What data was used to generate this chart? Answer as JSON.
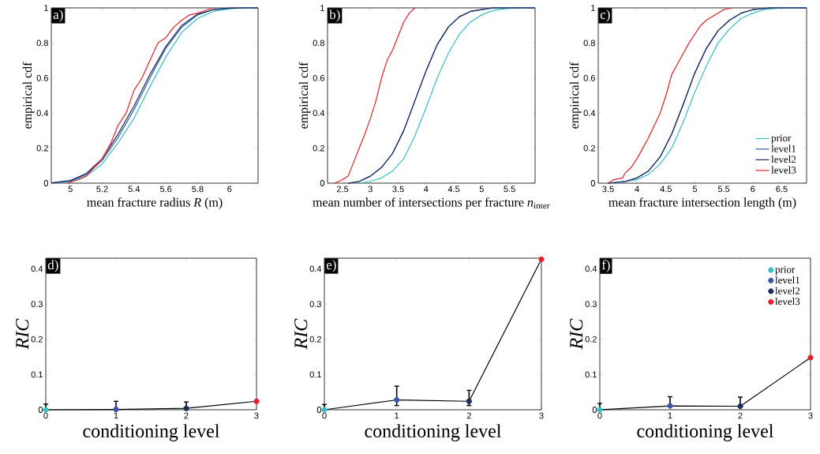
{
  "chart_data": [
    {
      "type": "line",
      "xlabel": "mean fracture radius *R* (m)",
      "ylabel": "empirical cdf",
      "annotations": [
        "a)"
      ],
      "xlim": [
        4.88,
        6.18
      ],
      "ylim": [
        0,
        1
      ],
      "xticks": [
        5,
        5.2,
        5.4,
        5.6,
        5.8,
        6
      ],
      "yticks": [
        0,
        0.2,
        0.4,
        0.6,
        0.8,
        1
      ],
      "legend": false,
      "series": [
        {
          "color": "#3bbfc4",
          "x": [
            4.88,
            5.0,
            5.1,
            5.2,
            5.3,
            5.4,
            5.5,
            5.6,
            5.7,
            5.8,
            5.9,
            6.0,
            6.1,
            6.18
          ],
          "values": [
            0,
            0.01,
            0.04,
            0.11,
            0.23,
            0.37,
            0.55,
            0.72,
            0.86,
            0.94,
            0.98,
            0.995,
            1,
            1
          ]
        },
        {
          "color": "#2b5ea8",
          "x": [
            4.88,
            5.0,
            5.1,
            5.2,
            5.3,
            5.4,
            5.5,
            5.6,
            5.7,
            5.8,
            5.9,
            6.0,
            6.1,
            6.18
          ],
          "values": [
            0.001,
            0.012,
            0.05,
            0.13,
            0.26,
            0.42,
            0.6,
            0.77,
            0.89,
            0.96,
            0.99,
            0.998,
            1,
            1
          ]
        },
        {
          "color": "#1c2a5e",
          "x": [
            4.88,
            5.0,
            5.1,
            5.2,
            5.3,
            5.4,
            5.5,
            5.6,
            5.7,
            5.8,
            5.9,
            6.0,
            6.1,
            6.18
          ],
          "values": [
            0.002,
            0.015,
            0.055,
            0.14,
            0.28,
            0.44,
            0.62,
            0.78,
            0.9,
            0.965,
            0.99,
            0.998,
            1,
            1
          ]
        },
        {
          "color": "#e8202a",
          "x": [
            4.98,
            5.05,
            5.1,
            5.15,
            5.2,
            5.25,
            5.3,
            5.35,
            5.4,
            5.45,
            5.5,
            5.55,
            5.6,
            5.65,
            5.7,
            5.75,
            5.8,
            5.9
          ],
          "values": [
            0,
            0.02,
            0.04,
            0.09,
            0.14,
            0.22,
            0.33,
            0.4,
            0.53,
            0.6,
            0.7,
            0.8,
            0.83,
            0.89,
            0.93,
            0.96,
            0.97,
            1
          ]
        }
      ]
    },
    {
      "type": "line",
      "xlabel": "mean number of intersections per fracture *n*$_{inter}$",
      "ylabel": "empirical cdf",
      "annotations": [
        "b)"
      ],
      "xlim": [
        2.23,
        5.96
      ],
      "ylim": [
        0,
        1
      ],
      "xticks": [
        2.5,
        3,
        3.5,
        4,
        4.5,
        5,
        5.5
      ],
      "yticks": [
        0,
        0.2,
        0.4,
        0.6,
        0.8,
        1
      ],
      "legend": false,
      "series": [
        {
          "color": "#3bbfc4",
          "x": [
            2.8,
            3.0,
            3.2,
            3.4,
            3.6,
            3.8,
            4.0,
            4.2,
            4.4,
            4.6,
            4.8,
            5.0,
            5.2,
            5.5,
            5.96
          ],
          "values": [
            0,
            0.01,
            0.03,
            0.07,
            0.14,
            0.27,
            0.43,
            0.6,
            0.74,
            0.85,
            0.92,
            0.96,
            0.985,
            0.998,
            1
          ]
        },
        {
          "color": "#2b5ea8",
          "x": [
            2.6,
            2.8,
            3.0,
            3.2,
            3.4,
            3.6,
            3.8,
            4.0,
            4.2,
            4.4,
            4.6,
            4.8,
            5.0,
            5.2,
            5.96
          ],
          "values": [
            0,
            0.01,
            0.04,
            0.09,
            0.17,
            0.3,
            0.47,
            0.64,
            0.79,
            0.89,
            0.95,
            0.98,
            0.99,
            1,
            1
          ]
        },
        {
          "color": "#1c2a5e",
          "x": [
            2.6,
            2.8,
            3.0,
            3.2,
            3.4,
            3.6,
            3.8,
            4.0,
            4.2,
            4.4,
            4.6,
            4.8,
            5.0,
            5.2,
            5.96
          ],
          "values": [
            0,
            0.01,
            0.04,
            0.09,
            0.17,
            0.3,
            0.47,
            0.64,
            0.79,
            0.89,
            0.95,
            0.98,
            0.99,
            1,
            1
          ]
        },
        {
          "color": "#e8202a",
          "x": [
            2.35,
            2.5,
            2.6,
            2.7,
            2.8,
            2.9,
            3.0,
            3.1,
            3.2,
            3.3,
            3.4,
            3.5,
            3.6,
            3.7,
            3.8
          ],
          "values": [
            0,
            0.02,
            0.04,
            0.12,
            0.2,
            0.28,
            0.37,
            0.47,
            0.6,
            0.7,
            0.76,
            0.84,
            0.92,
            0.97,
            1
          ]
        }
      ]
    },
    {
      "type": "line",
      "xlabel": "mean fracture intersection length (m)",
      "ylabel": "empirical cdf",
      "annotations": [
        "c)"
      ],
      "xlim": [
        3.33,
        6.93
      ],
      "ylim": [
        0,
        1
      ],
      "xticks": [
        3.5,
        4,
        4.5,
        5,
        5.5,
        6,
        6.5
      ],
      "yticks": [
        0,
        0.2,
        0.4,
        0.6,
        0.8,
        1
      ],
      "legend": "bottom right",
      "series": [
        {
          "name": "prior",
          "color": "#3bbfc4",
          "x": [
            3.6,
            4.0,
            4.2,
            4.4,
            4.6,
            4.8,
            5.0,
            5.2,
            5.4,
            5.6,
            5.8,
            6.0,
            6.2,
            6.5,
            6.93
          ],
          "values": [
            0,
            0.02,
            0.05,
            0.11,
            0.2,
            0.35,
            0.52,
            0.67,
            0.8,
            0.88,
            0.94,
            0.97,
            0.99,
            1,
            1
          ]
        },
        {
          "name": "level1",
          "color": "#2b5ea8",
          "x": [
            3.5,
            3.8,
            4.0,
            4.2,
            4.4,
            4.6,
            4.8,
            5.0,
            5.2,
            5.4,
            5.6,
            5.8,
            6.0,
            6.3,
            6.93
          ],
          "values": [
            0,
            0.01,
            0.03,
            0.07,
            0.15,
            0.28,
            0.45,
            0.63,
            0.77,
            0.87,
            0.93,
            0.97,
            0.99,
            1,
            1
          ]
        },
        {
          "name": "level2",
          "color": "#1c2a5e",
          "x": [
            3.5,
            3.8,
            4.0,
            4.2,
            4.4,
            4.6,
            4.8,
            5.0,
            5.2,
            5.4,
            5.6,
            5.8,
            6.0,
            6.3,
            6.93
          ],
          "values": [
            0,
            0.01,
            0.03,
            0.07,
            0.15,
            0.28,
            0.45,
            0.63,
            0.77,
            0.87,
            0.93,
            0.97,
            0.99,
            1,
            1
          ]
        },
        {
          "name": "level3",
          "color": "#e8202a",
          "x": [
            3.5,
            3.6,
            3.75,
            3.8,
            3.9,
            4.0,
            4.1,
            4.2,
            4.3,
            4.4,
            4.5,
            4.6,
            4.7,
            4.8,
            4.9,
            5.0,
            5.1,
            5.2,
            5.3,
            5.5,
            5.65
          ],
          "values": [
            0,
            0.02,
            0.03,
            0.06,
            0.09,
            0.14,
            0.2,
            0.26,
            0.33,
            0.4,
            0.5,
            0.62,
            0.68,
            0.74,
            0.8,
            0.85,
            0.9,
            0.93,
            0.95,
            0.99,
            1
          ]
        }
      ]
    },
    {
      "type": "line",
      "xlabel": "conditioning level",
      "ylabel": "*RIC*",
      "annotations": [
        "d)"
      ],
      "xlim": [
        0,
        3
      ],
      "ylim": [
        0,
        0.43
      ],
      "xticks": [
        0,
        1,
        2,
        3
      ],
      "yticks": [
        0,
        0.1,
        0.2,
        0.3,
        0.4
      ],
      "legend": false,
      "series": [
        {
          "color": "#000000",
          "marker": "none",
          "x": [
            0,
            1,
            2,
            3
          ],
          "values": [
            0,
            0.001,
            0.004,
            0.024
          ]
        },
        {
          "type": "scatter",
          "marker": "circle",
          "color": "#3bbfc4",
          "x": [
            0
          ],
          "values": [
            0
          ],
          "errors": [
            [
              0,
              0.016
            ]
          ]
        },
        {
          "type": "scatter",
          "marker": "circle",
          "color": "#3a57a6",
          "x": [
            1
          ],
          "values": [
            0.001
          ],
          "errors": [
            [
              0,
              0.024
            ]
          ]
        },
        {
          "type": "scatter",
          "marker": "circle",
          "color": "#1c2d5a",
          "x": [
            2
          ],
          "values": [
            0.004
          ],
          "errors": [
            [
              0.004,
              0.022
            ]
          ]
        },
        {
          "type": "scatter",
          "marker": "circle",
          "color": "#e8202a",
          "x": [
            3
          ],
          "values": [
            0.024
          ]
        }
      ]
    },
    {
      "type": "line",
      "xlabel": "conditioning level",
      "ylabel": "*RIC*",
      "annotations": [
        "e)"
      ],
      "xlim": [
        0,
        3
      ],
      "ylim": [
        0,
        0.43
      ],
      "xticks": [
        0,
        1,
        2,
        3
      ],
      "yticks": [
        0,
        0.1,
        0.2,
        0.3,
        0.4
      ],
      "legend": false,
      "series": [
        {
          "color": "#000000",
          "marker": "none",
          "x": [
            0,
            1,
            2,
            3
          ],
          "values": [
            0,
            0.028,
            0.024,
            0.427
          ]
        },
        {
          "type": "scatter",
          "marker": "circle",
          "color": "#3bbfc4",
          "x": [
            0
          ],
          "values": [
            0
          ],
          "errors": [
            [
              0,
              0.015
            ]
          ]
        },
        {
          "type": "scatter",
          "marker": "circle",
          "color": "#3a57a6",
          "x": [
            1
          ],
          "values": [
            0.028
          ],
          "errors": [
            [
              0.012,
              0.067
            ]
          ]
        },
        {
          "type": "scatter",
          "marker": "circle",
          "color": "#1c2d5a",
          "x": [
            2
          ],
          "values": [
            0.024
          ],
          "errors": [
            [
              0.012,
              0.055
            ]
          ]
        },
        {
          "type": "scatter",
          "marker": "circle",
          "color": "#e8202a",
          "x": [
            3
          ],
          "values": [
            0.427
          ]
        }
      ]
    },
    {
      "type": "line",
      "xlabel": "conditioning level",
      "ylabel": "*RIC*",
      "annotations": [
        "f)"
      ],
      "xlim": [
        0,
        3
      ],
      "ylim": [
        0,
        0.43
      ],
      "xticks": [
        0,
        1,
        2,
        3
      ],
      "yticks": [
        0,
        0.1,
        0.2,
        0.3,
        0.4
      ],
      "legend": "top right",
      "series": [
        {
          "color": "#000000",
          "marker": "none",
          "x": [
            0,
            1,
            2,
            3
          ],
          "values": [
            0,
            0.011,
            0.01,
            0.148
          ]
        },
        {
          "type": "scatter",
          "marker": "circle",
          "name": "prior",
          "color": "#3bbfc4",
          "x": [
            0
          ],
          "values": [
            0
          ],
          "errors": [
            [
              0,
              0.018
            ]
          ]
        },
        {
          "type": "scatter",
          "marker": "circle",
          "name": "level1",
          "color": "#3a57a6",
          "x": [
            1
          ],
          "values": [
            0.011
          ],
          "errors": [
            [
              0.011,
              0.037
            ]
          ]
        },
        {
          "type": "scatter",
          "marker": "circle",
          "name": "level2",
          "color": "#1c2d5a",
          "x": [
            2
          ],
          "values": [
            0.01
          ],
          "errors": [
            [
              0.01,
              0.036
            ]
          ]
        },
        {
          "type": "scatter",
          "marker": "circle",
          "name": "level3",
          "color": "#e8202a",
          "x": [
            3
          ],
          "values": [
            0.148
          ]
        }
      ]
    }
  ]
}
